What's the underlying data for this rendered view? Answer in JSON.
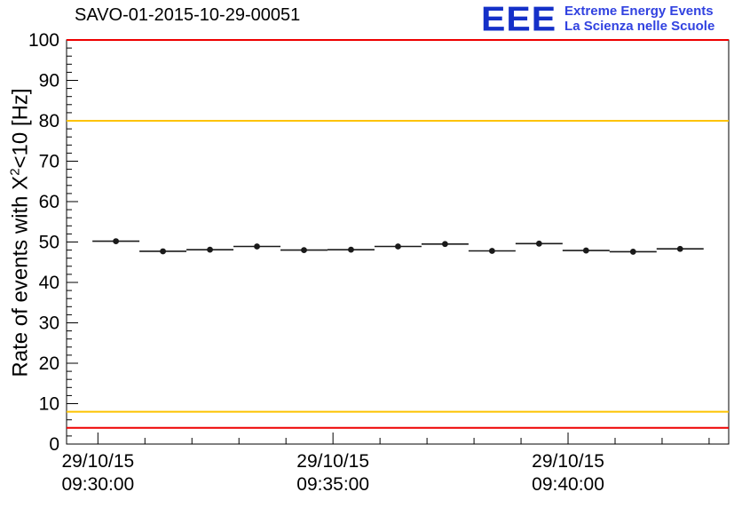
{
  "header": {
    "title": "SAVO-01-2015-10-29-00051",
    "logo": {
      "text": "EEE",
      "line1": "Extreme Energy Events",
      "line2": "La Scienza nelle Scuole",
      "logo_color": "#1430c8",
      "text_color": "#3142e0"
    }
  },
  "chart_data": {
    "type": "scatter",
    "title": "SAVO-01-2015-10-29-00051",
    "ylabel_parts": {
      "prefix": "Rate of events with X",
      "sup": "2",
      "suffix": "<10 [Hz]"
    },
    "xlabel": "",
    "ylim": [
      0,
      100
    ],
    "y_major_ticks": [
      0,
      10,
      20,
      30,
      40,
      50,
      60,
      70,
      80,
      90,
      100
    ],
    "y_minor_step": 2,
    "x_start_label": "29/10/15 09:30:00",
    "x_range_s": [
      -40,
      805
    ],
    "x_minor_step_s": 60,
    "x_ticks": [
      {
        "t_s": 0,
        "line1": "29/10/15",
        "line2": "09:30:00"
      },
      {
        "t_s": 300,
        "line1": "29/10/15",
        "line2": "09:35:00"
      },
      {
        "t_s": 600,
        "line1": "29/10/15",
        "line2": "09:40:00"
      }
    ],
    "grid": false,
    "legend": "none",
    "marker_color": "#1a1a1a",
    "xerr_s": 30,
    "yerr_hz": 0.5,
    "points": [
      {
        "t_s": 23,
        "rate_hz": 50.2
      },
      {
        "t_s": 83,
        "rate_hz": 47.7
      },
      {
        "t_s": 143,
        "rate_hz": 48.1
      },
      {
        "t_s": 203,
        "rate_hz": 48.9
      },
      {
        "t_s": 263,
        "rate_hz": 48.0
      },
      {
        "t_s": 323,
        "rate_hz": 48.1
      },
      {
        "t_s": 383,
        "rate_hz": 48.9
      },
      {
        "t_s": 443,
        "rate_hz": 49.5
      },
      {
        "t_s": 503,
        "rate_hz": 47.8
      },
      {
        "t_s": 563,
        "rate_hz": 49.6
      },
      {
        "t_s": 623,
        "rate_hz": 47.9
      },
      {
        "t_s": 683,
        "rate_hz": 47.6
      },
      {
        "t_s": 743,
        "rate_hz": 48.3
      }
    ],
    "threshold_lines": [
      {
        "y": 100,
        "color": "#ee0000",
        "width": 2
      },
      {
        "y": 80,
        "color": "#fdc300",
        "width": 2
      },
      {
        "y": 8,
        "color": "#fdc300",
        "width": 2
      },
      {
        "y": 4,
        "color": "#ee0000",
        "width": 2
      }
    ]
  }
}
